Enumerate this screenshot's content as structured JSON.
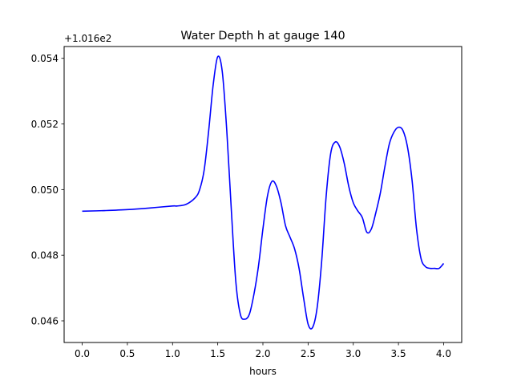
{
  "chart_data": {
    "type": "line",
    "title": "Water Depth h at gauge 140",
    "xlabel": "hours",
    "ylabel": "",
    "y_offset_label": "+1.016e2",
    "xlim": [
      -0.2,
      4.2
    ],
    "ylim": [
      0.04534,
      0.05436
    ],
    "x_ticks": [
      0.0,
      0.5,
      1.0,
      1.5,
      2.0,
      2.5,
      3.0,
      3.5,
      4.0
    ],
    "x_tick_labels": [
      "0.0",
      "0.5",
      "1.0",
      "1.5",
      "2.0",
      "2.5",
      "3.0",
      "3.5",
      "4.0"
    ],
    "y_ticks": [
      0.046,
      0.048,
      0.05,
      0.052,
      0.054
    ],
    "y_tick_labels": [
      "0.046",
      "0.048",
      "0.050",
      "0.052",
      "0.054"
    ],
    "grid": false,
    "series": [
      {
        "color": "#0000ff",
        "x": [
          0.0,
          0.25,
          0.5,
          0.75,
          1.0,
          1.05,
          1.15,
          1.25,
          1.3,
          1.35,
          1.4,
          1.45,
          1.5,
          1.55,
          1.6,
          1.65,
          1.7,
          1.75,
          1.8,
          1.85,
          1.9,
          1.95,
          2.0,
          2.05,
          2.1,
          2.15,
          2.2,
          2.25,
          2.3,
          2.35,
          2.4,
          2.45,
          2.5,
          2.55,
          2.6,
          2.65,
          2.7,
          2.75,
          2.8,
          2.85,
          2.9,
          2.95,
          3.0,
          3.05,
          3.1,
          3.15,
          3.2,
          3.25,
          3.3,
          3.35,
          3.4,
          3.45,
          3.5,
          3.55,
          3.6,
          3.65,
          3.7,
          3.75,
          3.8,
          3.85,
          3.9,
          3.95,
          4.0
        ],
        "y": [
          0.04934,
          0.04936,
          0.04939,
          0.04944,
          0.0495,
          0.0495,
          0.04955,
          0.04975,
          0.05,
          0.0506,
          0.0518,
          0.0532,
          0.05405,
          0.0536,
          0.0518,
          0.0494,
          0.0472,
          0.0462,
          0.04605,
          0.0462,
          0.0468,
          0.04765,
          0.0488,
          0.0498,
          0.05025,
          0.0501,
          0.0496,
          0.0489,
          0.04855,
          0.0482,
          0.0476,
          0.0467,
          0.0459,
          0.0458,
          0.0464,
          0.0478,
          0.0498,
          0.0511,
          0.05145,
          0.0513,
          0.0508,
          0.0501,
          0.0496,
          0.04935,
          0.04915,
          0.0487,
          0.0488,
          0.0493,
          0.0499,
          0.0507,
          0.0514,
          0.05175,
          0.0519,
          0.0518,
          0.0513,
          0.0503,
          0.0488,
          0.0479,
          0.04765,
          0.0476,
          0.0476,
          0.0476,
          0.04775
        ]
      }
    ]
  }
}
